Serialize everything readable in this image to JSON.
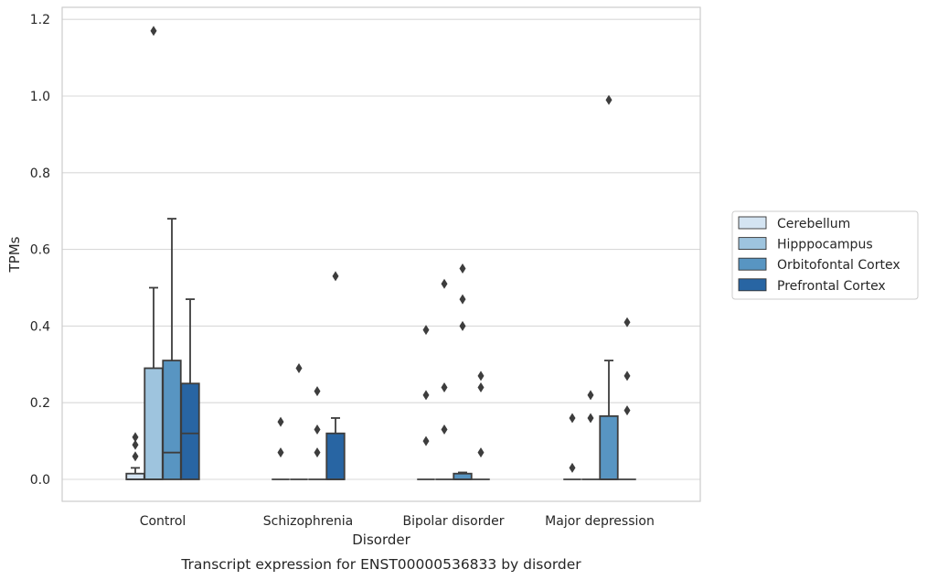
{
  "chart_data": {
    "type": "box",
    "xlabel": "Disorder",
    "ylabel": "TPMs",
    "caption": "Transcript expression for ENST00000536833 by disorder",
    "ylim": [
      -0.057,
      1.23
    ],
    "yticks": [
      "0.0",
      "0.2",
      "0.4",
      "0.6",
      "0.8",
      "1.0",
      "1.2"
    ],
    "grid": "horizontal",
    "legend_position": "right",
    "categories": [
      "Control",
      "Schizophrenia",
      "Bipolar disorder",
      "Major depression"
    ],
    "series": [
      {
        "name": "Cerebellum",
        "color": "#d4e4f2",
        "boxes": [
          {
            "q1": 0.0,
            "median": 0.0,
            "q3": 0.015,
            "whislo": 0.0,
            "whishi": 0.03,
            "fliers": [
              0.06,
              0.09,
              0.11
            ]
          },
          {
            "q1": 0.0,
            "median": 0.0,
            "q3": 0.0,
            "whislo": 0.0,
            "whishi": 0.0,
            "fliers": [
              0.07,
              0.15
            ]
          },
          {
            "q1": 0.0,
            "median": 0.0,
            "q3": 0.0,
            "whislo": 0.0,
            "whishi": 0.0,
            "fliers": [
              0.1,
              0.22,
              0.39
            ]
          },
          {
            "q1": 0.0,
            "median": 0.0,
            "q3": 0.0,
            "whislo": 0.0,
            "whishi": 0.0,
            "fliers": [
              0.03,
              0.16
            ]
          }
        ]
      },
      {
        "name": "Hipppocampus",
        "color": "#9ec4de",
        "boxes": [
          {
            "q1": 0.0,
            "median": 0.0,
            "q3": 0.29,
            "whislo": 0.0,
            "whishi": 0.5,
            "fliers": [
              1.17
            ]
          },
          {
            "q1": 0.0,
            "median": 0.0,
            "q3": 0.0,
            "whislo": 0.0,
            "whishi": 0.0,
            "fliers": [
              0.29
            ]
          },
          {
            "q1": 0.0,
            "median": 0.0,
            "q3": 0.0,
            "whislo": 0.0,
            "whishi": 0.0,
            "fliers": [
              0.13,
              0.24,
              0.51
            ]
          },
          {
            "q1": 0.0,
            "median": 0.0,
            "q3": 0.0,
            "whislo": 0.0,
            "whishi": 0.0,
            "fliers": [
              0.16,
              0.22
            ]
          }
        ]
      },
      {
        "name": "Orbitofontal Cortex",
        "color": "#5895c2",
        "boxes": [
          {
            "q1": 0.0,
            "median": 0.07,
            "q3": 0.31,
            "whislo": 0.0,
            "whishi": 0.68,
            "fliers": []
          },
          {
            "q1": 0.0,
            "median": 0.0,
            "q3": 0.0,
            "whislo": 0.0,
            "whishi": 0.0,
            "fliers": [
              0.07,
              0.13,
              0.23
            ]
          },
          {
            "q1": 0.0,
            "median": 0.0,
            "q3": 0.015,
            "whislo": 0.0,
            "whishi": 0.018,
            "fliers": [
              0.4,
              0.47,
              0.55
            ]
          },
          {
            "q1": 0.0,
            "median": 0.0,
            "q3": 0.165,
            "whislo": 0.0,
            "whishi": 0.31,
            "fliers": [
              0.99
            ]
          }
        ]
      },
      {
        "name": "Prefrontal Cortex",
        "color": "#2865a3",
        "boxes": [
          {
            "q1": 0.0,
            "median": 0.12,
            "q3": 0.25,
            "whislo": 0.0,
            "whishi": 0.47,
            "fliers": []
          },
          {
            "q1": 0.0,
            "median": 0.0,
            "q3": 0.12,
            "whislo": 0.0,
            "whishi": 0.16,
            "fliers": [
              0.53
            ]
          },
          {
            "q1": 0.0,
            "median": 0.0,
            "q3": 0.0,
            "whislo": 0.0,
            "whishi": 0.0,
            "fliers": [
              0.07,
              0.24,
              0.27
            ]
          },
          {
            "q1": 0.0,
            "median": 0.0,
            "q3": 0.0,
            "whislo": 0.0,
            "whishi": 0.0,
            "fliers": [
              0.18,
              0.27,
              0.41
            ]
          }
        ]
      }
    ]
  }
}
